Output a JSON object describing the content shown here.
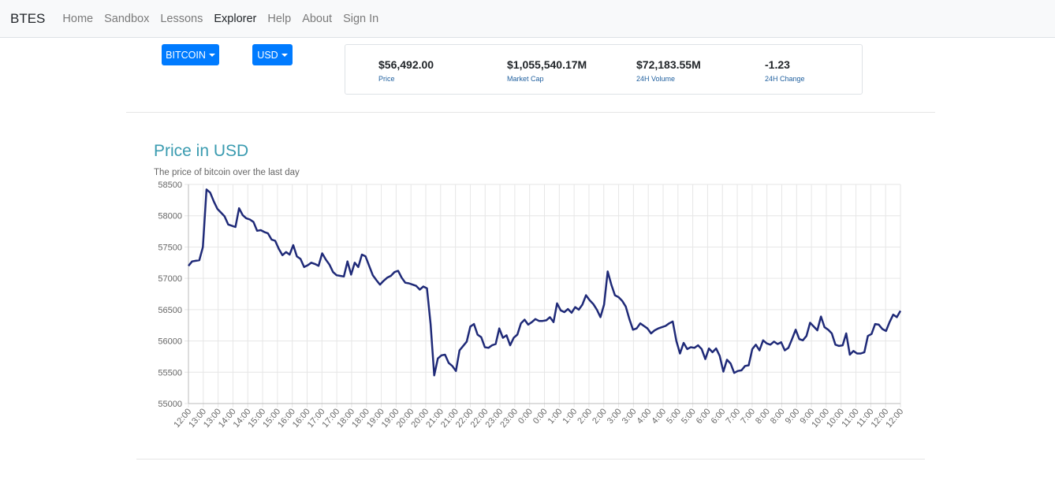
{
  "navbar": {
    "brand": "BTES",
    "items": [
      {
        "label": "Home",
        "active": false
      },
      {
        "label": "Sandbox",
        "active": false
      },
      {
        "label": "Lessons",
        "active": false
      },
      {
        "label": "Explorer",
        "active": true
      },
      {
        "label": "Help",
        "active": false
      },
      {
        "label": "About",
        "active": false
      },
      {
        "label": "Sign In",
        "active": false
      }
    ]
  },
  "controls": {
    "coin_label": "BITCOIN",
    "currency_label": "USD"
  },
  "stats": [
    {
      "value": "$56,492.00",
      "label": "Price"
    },
    {
      "value": "$1,055,540.17M",
      "label": "Market Cap"
    },
    {
      "value": "$72,183.55M",
      "label": "24H Volume"
    },
    {
      "value": "-1.23",
      "label": "24H Change"
    }
  ],
  "chart_header": {
    "title": "Price in USD",
    "subtitle": "The price of bitcoin over the last day"
  },
  "colors": {
    "accent": "#007bff",
    "line": "#1f2a78",
    "title": "#3a9bb0"
  },
  "chart_data": {
    "type": "line",
    "title": "Price in USD",
    "subtitle": "The price of bitcoin over the last day",
    "xlabel": "",
    "ylabel": "",
    "ylim": [
      55000,
      58500
    ],
    "yticks": [
      55000,
      55500,
      56000,
      56500,
      57000,
      57500,
      58000,
      58500
    ],
    "grid": true,
    "legend": "none",
    "x_tick_labels": [
      "12:00",
      "13:00",
      "13:00",
      "14:00",
      "14:00",
      "15:00",
      "15:00",
      "16:00",
      "16:00",
      "17:00",
      "17:00",
      "18:00",
      "18:00",
      "19:00",
      "19:00",
      "20:00",
      "20:00",
      "21:00",
      "21:00",
      "22:00",
      "22:00",
      "23:00",
      "23:00",
      "0:00",
      "0:00",
      "1:00",
      "1:00",
      "2:00",
      "2:00",
      "3:00",
      "3:00",
      "4:00",
      "4:00",
      "5:00",
      "5:00",
      "6:00",
      "6:00",
      "7:00",
      "7:00",
      "8:00",
      "8:00",
      "9:00",
      "9:00",
      "10:00",
      "10:00",
      "11:00",
      "11:00",
      "12:00",
      "12:00"
    ],
    "series": [
      {
        "values": [
          57200,
          57270,
          57280,
          57290,
          57500,
          58420,
          58370,
          58230,
          58110,
          58050,
          57990,
          57860,
          57840,
          57820,
          58120,
          58010,
          57960,
          57940,
          57900,
          57760,
          57770,
          57740,
          57720,
          57620,
          57600,
          57470,
          57370,
          57420,
          57380,
          57530,
          57350,
          57310,
          57180,
          57210,
          57250,
          57230,
          57200,
          57400,
          57300,
          57220,
          57100,
          57050,
          57040,
          57030,
          57270,
          57060,
          57250,
          57180,
          57380,
          57350,
          57200,
          57050,
          56970,
          56900,
          56960,
          57010,
          57040,
          57100,
          57120,
          57010,
          56930,
          56920,
          56900,
          56880,
          56820,
          56870,
          56840,
          56270,
          55450,
          55720,
          55770,
          55780,
          55650,
          55600,
          55520,
          55850,
          55920,
          55990,
          56230,
          56270,
          56100,
          56060,
          55900,
          55890,
          55930,
          55950,
          56200,
          56050,
          56090,
          55930,
          56050,
          56100,
          56280,
          56340,
          56260,
          56300,
          56350,
          56320,
          56320,
          56330,
          56380,
          56300,
          56600,
          56490,
          56460,
          56510,
          56450,
          56540,
          56500,
          56580,
          56730,
          56650,
          56590,
          56500,
          56380,
          56580,
          57110,
          56900,
          56730,
          56700,
          56640,
          56550,
          56350,
          56180,
          56200,
          56280,
          56240,
          56200,
          56120,
          56170,
          56200,
          56220,
          56240,
          56280,
          56310,
          56000,
          55800,
          55970,
          55870,
          55900,
          55890,
          55930,
          55870,
          55710,
          55880,
          55820,
          55880,
          55760,
          55510,
          55700,
          55640,
          55490,
          55520,
          55530,
          55600,
          55610,
          55870,
          55940,
          55850,
          56010,
          55960,
          55940,
          55990,
          55950,
          55980,
          55850,
          55890,
          56030,
          56180,
          56030,
          56010,
          56080,
          56290,
          56230,
          56170,
          56390,
          56220,
          56180,
          56120,
          55940,
          55920,
          55930,
          56120,
          55780,
          55840,
          55800,
          55800,
          55820,
          56080,
          56110,
          56270,
          56260,
          56190,
          56160,
          56300,
          56420,
          56380,
          56480
        ]
      }
    ]
  }
}
